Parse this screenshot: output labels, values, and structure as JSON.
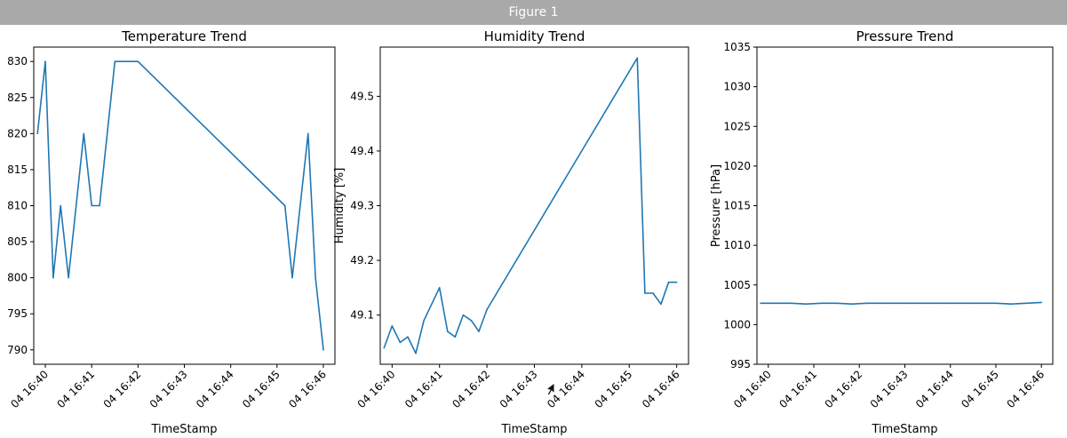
{
  "window": {
    "title": "Figure 1"
  },
  "chart_data": [
    {
      "type": "line",
      "title": "Temperature Trend",
      "xlabel": "TimeStamp",
      "ylabel": "",
      "color": "#1f77b4",
      "x_ticks": [
        "04 16:40",
        "04 16:41",
        "04 16:42",
        "04 16:43",
        "04 16:44",
        "04 16:45",
        "04 16:46"
      ],
      "x_range": [
        -0.25,
        6.25
      ],
      "y_ticks": [
        790,
        795,
        800,
        805,
        810,
        815,
        820,
        825,
        830
      ],
      "ylim": [
        788,
        832
      ],
      "series": [
        {
          "x": [
            -0.17,
            0.0,
            0.17,
            0.33,
            0.5,
            0.83,
            1.0,
            1.17,
            1.5,
            2.0,
            5.17,
            5.33,
            5.67,
            5.83,
            6.0
          ],
          "values": [
            820,
            830,
            800,
            810,
            800,
            820,
            810,
            810,
            830,
            830,
            810,
            800,
            820,
            800,
            790
          ]
        }
      ]
    },
    {
      "type": "line",
      "title": "Humidity Trend",
      "xlabel": "TimeStamp",
      "ylabel": "Humidity [%]",
      "color": "#1f77b4",
      "x_ticks": [
        "04 16:40",
        "04 16:41",
        "04 16:42",
        "04 16:43",
        "04 16:44",
        "04 16:45",
        "04 16:46"
      ],
      "x_range": [
        -0.25,
        6.25
      ],
      "y_ticks": [
        "49.1",
        "49.2",
        "49.3",
        "49.4",
        "49.5"
      ],
      "ylim": [
        49.01,
        49.59
      ],
      "series": [
        {
          "x": [
            -0.17,
            0.0,
            0.17,
            0.33,
            0.5,
            0.67,
            1.0,
            1.17,
            1.33,
            1.5,
            1.67,
            1.83,
            2.0,
            5.17,
            5.33,
            5.5,
            5.67,
            5.83,
            6.0
          ],
          "values": [
            49.04,
            49.08,
            49.05,
            49.06,
            49.03,
            49.09,
            49.15,
            49.07,
            49.06,
            49.1,
            49.09,
            49.07,
            49.11,
            49.57,
            49.14,
            49.14,
            49.12,
            49.16,
            49.16
          ]
        }
      ]
    },
    {
      "type": "line",
      "title": "Pressure Trend",
      "xlabel": "TimeStamp",
      "ylabel": "Pressure [hPa]",
      "color": "#1f77b4",
      "x_ticks": [
        "04 16:40",
        "04 16:41",
        "04 16:42",
        "04 16:43",
        "04 16:44",
        "04 16:45",
        "04 16:46"
      ],
      "x_range": [
        -0.25,
        6.25
      ],
      "y_ticks": [
        995,
        1000,
        1005,
        1010,
        1015,
        1020,
        1025,
        1030,
        1035
      ],
      "ylim": [
        995,
        1035
      ],
      "series": [
        {
          "x": [
            -0.17,
            0.17,
            0.5,
            0.83,
            1.17,
            1.5,
            1.83,
            2.17,
            2.5,
            3.0,
            3.5,
            4.0,
            4.5,
            5.0,
            5.33,
            5.67,
            6.0
          ],
          "values": [
            1002.7,
            1002.7,
            1002.7,
            1002.6,
            1002.7,
            1002.7,
            1002.6,
            1002.7,
            1002.7,
            1002.7,
            1002.7,
            1002.7,
            1002.7,
            1002.7,
            1002.6,
            1002.7,
            1002.8
          ]
        }
      ]
    }
  ]
}
